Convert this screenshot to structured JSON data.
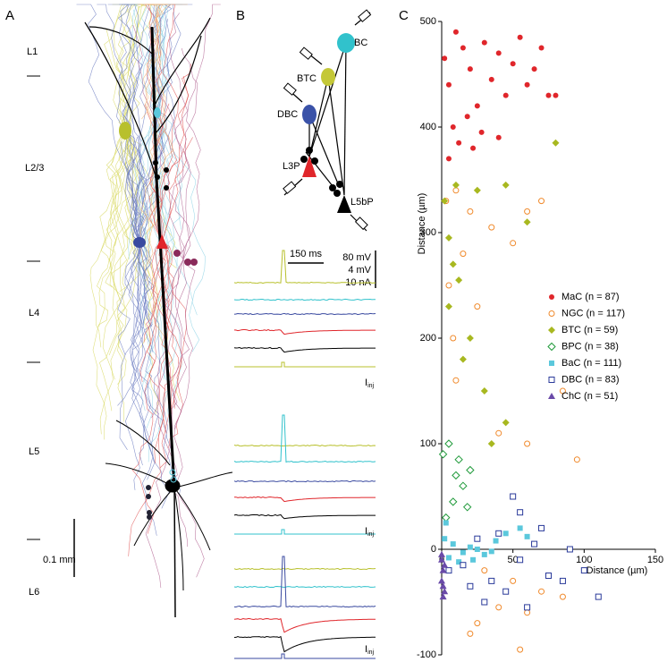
{
  "panels": {
    "a": "A",
    "b": "B",
    "c": "C"
  },
  "panel_a": {
    "layers": [
      "L1",
      "L2/3",
      "L4",
      "L5",
      "L6"
    ],
    "scale_bar": "0.1 mm"
  },
  "panel_b": {
    "cells": [
      "BC",
      "BTC",
      "DBC",
      "L3P",
      "L5bP"
    ],
    "time_scale": "150 ms",
    "amp_scales": [
      "80 mV",
      "4 mV",
      "10 nA"
    ],
    "current_label": "I",
    "current_sub": "inj"
  },
  "chart_data": {
    "type": "scatter",
    "xlabel": "Distance (µm)",
    "ylabel": "Distance (µm)",
    "xlim": [
      0,
      150
    ],
    "xticks": [
      0,
      50,
      100,
      150
    ],
    "ylim": [
      -100,
      500
    ],
    "yticks": [
      -100,
      0,
      100,
      200,
      300,
      400,
      500
    ],
    "series": [
      {
        "name": "MaC (n = 87)",
        "color": "#e0262b",
        "marker": "circle",
        "x": [
          2,
          5,
          10,
          15,
          20,
          25,
          30,
          35,
          40,
          45,
          50,
          55,
          60,
          65,
          70,
          75,
          80,
          8,
          18,
          28,
          12,
          40,
          5,
          22
        ],
        "values": [
          465,
          440,
          490,
          475,
          455,
          420,
          480,
          445,
          470,
          430,
          460,
          485,
          440,
          455,
          475,
          430,
          430,
          400,
          410,
          395,
          385,
          390,
          370,
          380
        ]
      },
      {
        "name": "NGC (n = 117)",
        "color": "#f08a2c",
        "marker": "open-circle",
        "x": [
          3,
          10,
          20,
          35,
          50,
          60,
          70,
          15,
          5,
          8,
          25,
          85,
          10,
          40,
          60,
          95,
          30,
          50,
          70,
          85,
          60,
          40,
          25,
          55,
          20
        ],
        "values": [
          330,
          340,
          320,
          305,
          290,
          320,
          330,
          280,
          250,
          200,
          230,
          150,
          160,
          110,
          100,
          85,
          -20,
          -30,
          -40,
          -45,
          -60,
          -55,
          -70,
          -95,
          -80
        ]
      },
      {
        "name": "BTC (n = 59)",
        "color": "#a8b820",
        "marker": "diamond",
        "x": [
          2,
          10,
          25,
          45,
          60,
          80,
          5,
          8,
          20,
          15,
          30,
          45,
          35,
          5,
          12
        ],
        "values": [
          330,
          345,
          340,
          345,
          310,
          385,
          295,
          270,
          200,
          180,
          150,
          120,
          100,
          230,
          255
        ]
      },
      {
        "name": "BPC (n = 38)",
        "color": "#1f9a3a",
        "marker": "open-diamond",
        "x": [
          1,
          5,
          10,
          15,
          8,
          3,
          20,
          12,
          18
        ],
        "values": [
          90,
          100,
          70,
          60,
          45,
          30,
          75,
          85,
          40
        ]
      },
      {
        "name": "BaC (n = 111)",
        "color": "#5bc8dc",
        "marker": "square",
        "x": [
          2,
          8,
          15,
          20,
          25,
          30,
          38,
          45,
          55,
          5,
          12,
          3,
          60,
          35,
          22
        ],
        "values": [
          10,
          5,
          -3,
          2,
          0,
          -5,
          8,
          15,
          20,
          -8,
          -12,
          25,
          12,
          -2,
          -10
        ]
      },
      {
        "name": "DBC (n = 83)",
        "color": "#2a3a9a",
        "marker": "open-square",
        "x": [
          5,
          15,
          25,
          35,
          45,
          55,
          65,
          75,
          85,
          100,
          110,
          50,
          55,
          40,
          30,
          20,
          90,
          60,
          70
        ],
        "values": [
          -20,
          -15,
          10,
          -30,
          -40,
          -10,
          5,
          -25,
          -30,
          -20,
          -45,
          50,
          35,
          15,
          -50,
          -35,
          0,
          -55,
          20
        ]
      },
      {
        "name": "ChC (n = 51)",
        "color": "#6a4aa8",
        "marker": "triangle",
        "x": [
          0,
          1,
          0,
          2,
          1,
          0,
          2,
          1
        ],
        "values": [
          -10,
          -20,
          -30,
          -40,
          -45,
          -5,
          -15,
          -35
        ]
      }
    ]
  }
}
